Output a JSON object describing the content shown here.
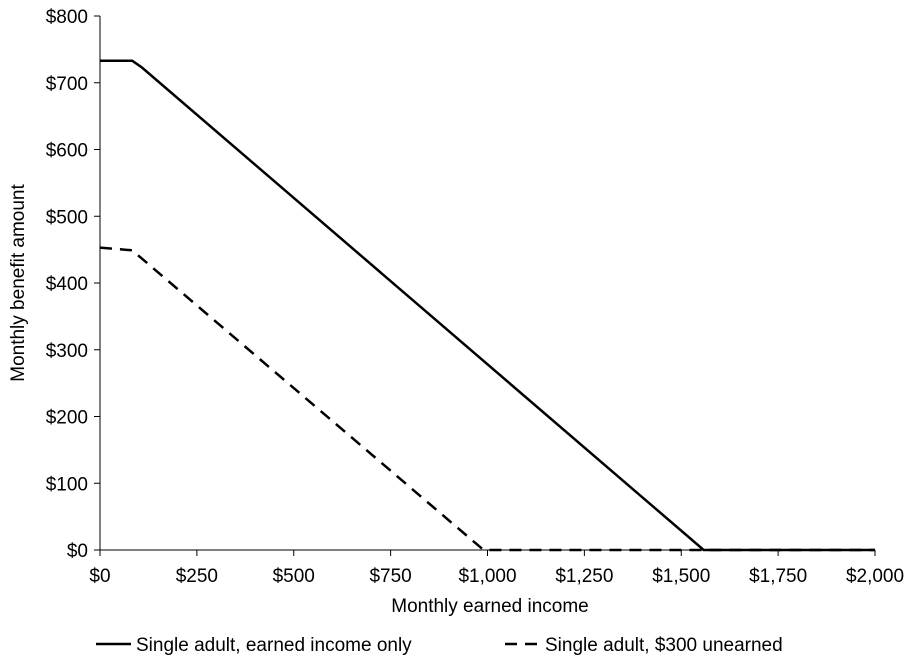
{
  "chart_data": {
    "type": "line",
    "xlabel": "Monthly earned income",
    "ylabel": "Monthly benefit amount",
    "xlim": [
      0,
      2000
    ],
    "ylim": [
      0,
      800
    ],
    "x_ticks": [
      0,
      250,
      500,
      750,
      1000,
      1250,
      1500,
      1750,
      2000
    ],
    "x_tick_labels": [
      "$0",
      "$250",
      "$500",
      "$750",
      "$1,000",
      "$1,250",
      "$1,500",
      "$1,750",
      "$2,000"
    ],
    "y_ticks": [
      0,
      100,
      200,
      300,
      400,
      500,
      600,
      700,
      800
    ],
    "y_tick_labels": [
      "$0",
      "$100",
      "$200",
      "$300",
      "$400",
      "$500",
      "$600",
      "$700",
      "$800"
    ],
    "grid": false,
    "legend_position": "bottom",
    "series": [
      {
        "name": "Single adult, earned income only",
        "style": "solid",
        "color": "#000000",
        "points": [
          [
            0,
            733
          ],
          [
            83,
            733
          ],
          [
            108,
            723
          ],
          [
            1558,
            0
          ],
          [
            2000,
            0
          ]
        ]
      },
      {
        "name": "Single adult, $300 unearned",
        "style": "dashed",
        "color": "#000000",
        "points": [
          [
            0,
            453
          ],
          [
            83,
            449
          ],
          [
            990,
            0
          ],
          [
            2000,
            0
          ]
        ]
      }
    ]
  }
}
